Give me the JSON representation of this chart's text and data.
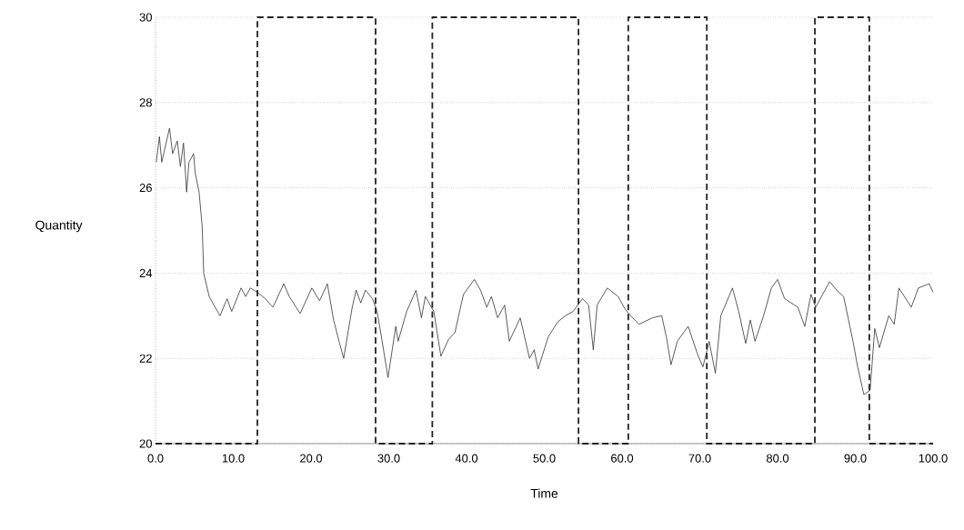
{
  "chart_data": {
    "type": "line",
    "xlabel": "Time",
    "ylabel": "Quantity",
    "xlim": [
      0,
      100
    ],
    "ylim": [
      20,
      30
    ],
    "xticks": [
      {
        "value": 0,
        "label": "0.0"
      },
      {
        "value": 10,
        "label": "10.0"
      },
      {
        "value": 20,
        "label": "20.0"
      },
      {
        "value": 30,
        "label": "30.0"
      },
      {
        "value": 40,
        "label": "40.0"
      },
      {
        "value": 50,
        "label": "50.0"
      },
      {
        "value": 60,
        "label": "60.0"
      },
      {
        "value": 70,
        "label": "70.0"
      },
      {
        "value": 80,
        "label": "80.0"
      },
      {
        "value": 90,
        "label": "90.0"
      },
      {
        "value": 100,
        "label": "100.0"
      }
    ],
    "yticks": [
      20,
      22,
      24,
      26,
      28,
      30
    ],
    "grid": "y",
    "marker": "none",
    "series": [
      {
        "type": "line",
        "color": "#333333",
        "line_style": "solid",
        "x": [
          0.1,
          0.5,
          0.8,
          1.8,
          2.2,
          2.8,
          3.2,
          3.6,
          4.0,
          4.3,
          4.9,
          5.1,
          5.6,
          6.0,
          6.2,
          6.9,
          7.5,
          8.3,
          9.2,
          9.8,
          11.0,
          11.6,
          12.2,
          13.1,
          14.1,
          15.1,
          16.5,
          17.2,
          18.6,
          20.1,
          21.1,
          22.1,
          22.9,
          23.6,
          24.2,
          25.3,
          25.8,
          26.4,
          27.0,
          27.9,
          28.5,
          29.1,
          29.9,
          30.9,
          31.2,
          32.3,
          33.5,
          34.2,
          34.7,
          35.8,
          36.7,
          37.7,
          38.5,
          39.6,
          41.0,
          41.8,
          42.6,
          43.2,
          44.0,
          44.9,
          45.5,
          46.9,
          48.1,
          48.7,
          49.2,
          50.5,
          51.7,
          52.7,
          53.7,
          54.9,
          55.7,
          56.3,
          56.8,
          58.1,
          59.5,
          60.4,
          61.1,
          62.2,
          63.9,
          65.1,
          65.7,
          66.3,
          67.1,
          68.5,
          69.7,
          70.4,
          71.2,
          72.0,
          72.7,
          74.2,
          75.0,
          75.9,
          76.5,
          77.1,
          78.2,
          79.2,
          80.0,
          80.9,
          82.6,
          83.5,
          84.3,
          84.9,
          86.7,
          87.6,
          88.5,
          89.7,
          90.3,
          91.1,
          91.9,
          92.5,
          93.1,
          94.3,
          95.0,
          95.6,
          97.2,
          98.1,
          99.5,
          100.0
        ],
        "values": [
          26.6,
          27.2,
          26.6,
          27.4,
          26.8,
          27.1,
          26.5,
          27.05,
          25.9,
          26.6,
          26.8,
          26.35,
          25.9,
          25.1,
          24.0,
          23.45,
          23.25,
          23.0,
          23.4,
          23.1,
          23.65,
          23.45,
          23.65,
          23.55,
          23.4,
          23.2,
          23.75,
          23.45,
          23.05,
          23.65,
          23.35,
          23.75,
          22.9,
          22.4,
          22.0,
          23.2,
          23.6,
          23.3,
          23.6,
          23.4,
          23.1,
          22.45,
          21.55,
          22.75,
          22.4,
          23.1,
          23.6,
          22.95,
          23.45,
          23.1,
          22.05,
          22.45,
          22.6,
          23.5,
          23.85,
          23.6,
          23.2,
          23.45,
          22.95,
          23.25,
          22.4,
          22.95,
          22.0,
          22.2,
          21.75,
          22.5,
          22.85,
          23.0,
          23.1,
          23.4,
          23.25,
          22.2,
          23.25,
          23.65,
          23.45,
          23.15,
          23.0,
          22.8,
          22.95,
          23.0,
          22.5,
          21.85,
          22.4,
          22.75,
          22.1,
          21.8,
          22.4,
          21.65,
          23.0,
          23.65,
          23.1,
          22.35,
          22.9,
          22.4,
          23.0,
          23.65,
          23.85,
          23.4,
          23.2,
          22.75,
          23.5,
          23.2,
          23.8,
          23.6,
          23.45,
          22.4,
          21.8,
          21.15,
          21.25,
          22.7,
          22.25,
          23.0,
          22.8,
          23.65,
          23.2,
          23.65,
          23.75,
          23.55
        ]
      },
      {
        "type": "step",
        "color": "#222222",
        "line_style": "dashed",
        "x": [
          0,
          13.1,
          28.3,
          35.6,
          54.4,
          60.8,
          70.9,
          84.8,
          91.8,
          100
        ],
        "values": [
          20,
          30,
          20,
          30,
          20,
          30,
          20,
          30,
          20,
          20
        ]
      }
    ]
  }
}
